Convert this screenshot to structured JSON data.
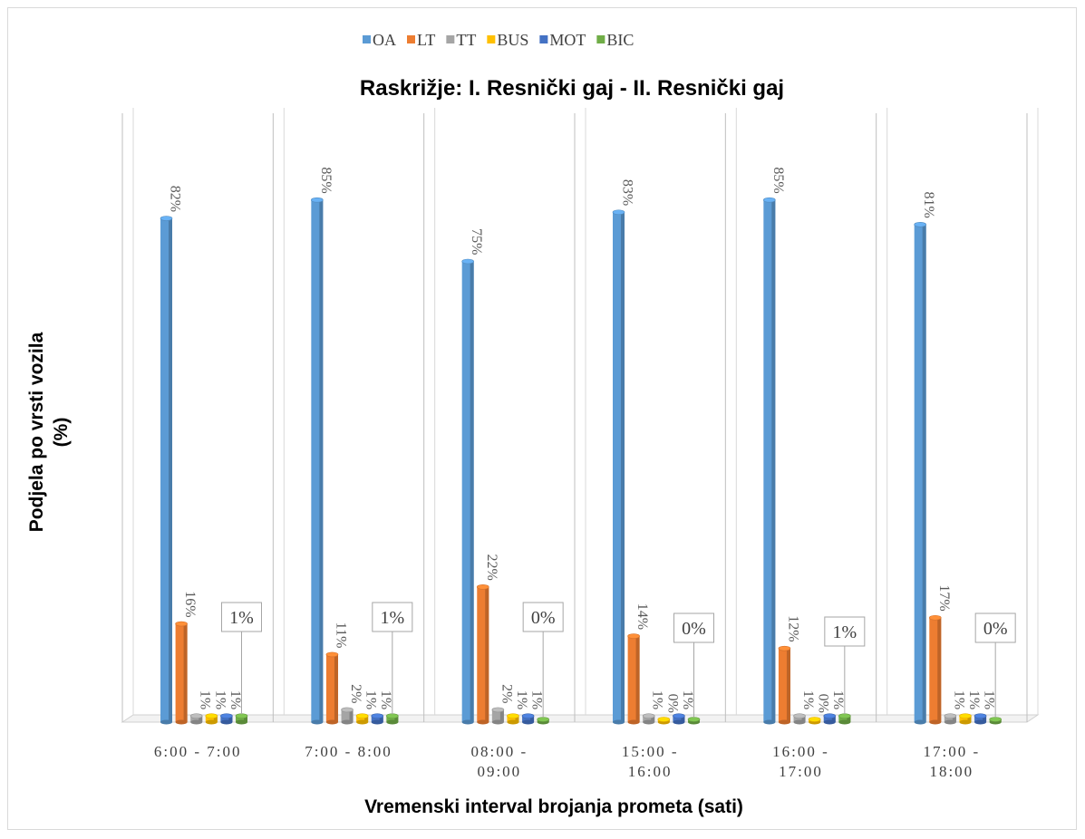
{
  "chart_data": {
    "type": "bar",
    "title": "Raskrižje: I. Resnički gaj - II. Resnički gaj",
    "xlabel": "Vremenski interval brojanja prometa (sati)",
    "ylabel_lines": [
      "Podjela po vrsti vozila",
      "(%)"
    ],
    "ylim": [
      0,
      100
    ],
    "legend_position": "top",
    "category_lines": [
      [
        "6:00  -  7:00"
      ],
      [
        "7:00  -  8:00"
      ],
      [
        "08:00  -",
        "09:00"
      ],
      [
        "15:00  -",
        "16:00"
      ],
      [
        "16:00  -",
        "17:00"
      ],
      [
        "17:00  -",
        "18:00"
      ]
    ],
    "series": [
      {
        "name": "OA",
        "color": "#5B9BD5",
        "values": [
          82,
          85,
          75,
          83,
          85,
          81
        ],
        "labels": [
          "82%",
          "85%",
          "75%",
          "83%",
          "85%",
          "81%"
        ]
      },
      {
        "name": "LT",
        "color": "#ED7D31",
        "values": [
          16,
          11,
          22,
          14,
          12,
          17
        ],
        "labels": [
          "16%",
          "11%",
          "22%",
          "14%",
          "12%",
          "17%"
        ]
      },
      {
        "name": "TT",
        "color": "#A5A5A5",
        "values": [
          1,
          2,
          2,
          1,
          1,
          1
        ],
        "labels": [
          "1%",
          "2%",
          "2%",
          "1%",
          "1%",
          "1%"
        ]
      },
      {
        "name": "BUS",
        "color": "#FFC000",
        "values": [
          1,
          1,
          1,
          0,
          0,
          1
        ],
        "labels": [
          "1%",
          "1%",
          "1%",
          "0%",
          "0%",
          "1%"
        ]
      },
      {
        "name": "MOT",
        "color": "#4472C4",
        "values": [
          1,
          1,
          1,
          1,
          1,
          1
        ],
        "labels": [
          "1%",
          "1%",
          "1%",
          "1%",
          "1%",
          "1%"
        ]
      },
      {
        "name": "BIC",
        "color": "#70AD47",
        "values": [
          1,
          1,
          0,
          0,
          1,
          0
        ],
        "labels": [
          "1%",
          "1%",
          "0%",
          "0%",
          "1%",
          "0%"
        ]
      }
    ]
  }
}
